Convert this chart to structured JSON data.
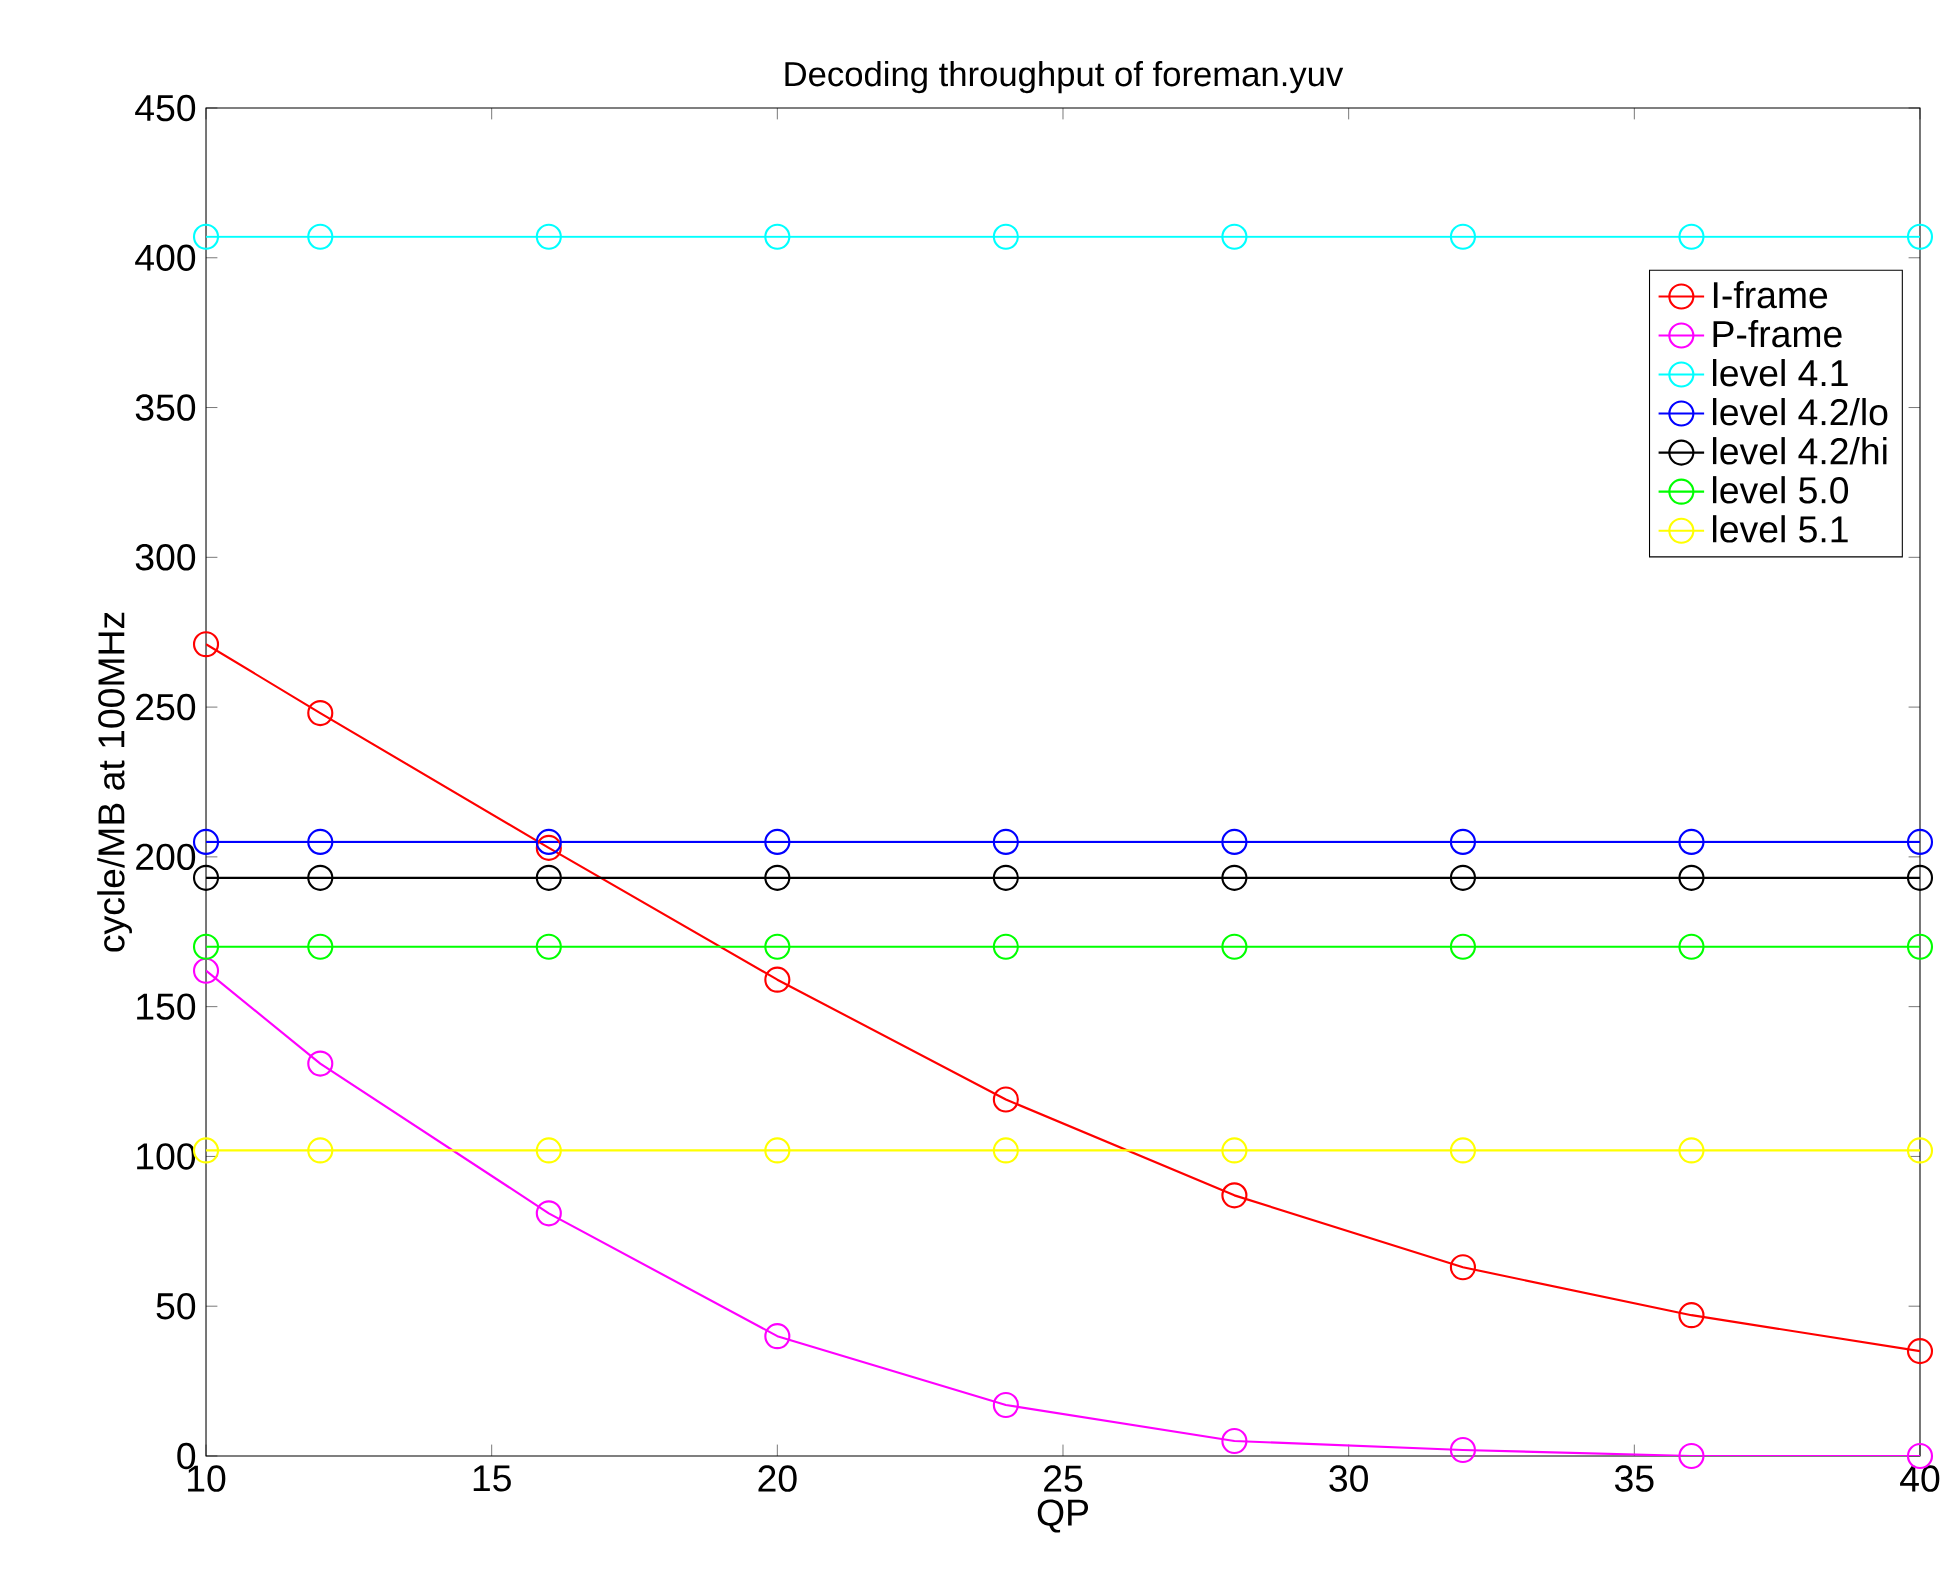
{
  "chart_data": {
    "type": "line",
    "title": "Decoding throughput of foreman.yuv",
    "xlabel": "QP",
    "ylabel": "cycle/MB at 100MHz",
    "x": [
      10,
      12,
      16,
      20,
      24,
      28,
      32,
      36,
      40
    ],
    "series": [
      {
        "name": "I-frame",
        "color": "#ff0000",
        "values": [
          271,
          248,
          203,
          159,
          119,
          87,
          63,
          47,
          35
        ]
      },
      {
        "name": "P-frame",
        "color": "#ff00ff",
        "values": [
          162,
          131,
          81,
          40,
          17,
          5,
          2,
          0,
          0
        ]
      },
      {
        "name": "level 4.1",
        "color": "#00ffff",
        "values": [
          407,
          407,
          407,
          407,
          407,
          407,
          407,
          407,
          407
        ]
      },
      {
        "name": "level 4.2/lo",
        "color": "#0000ff",
        "values": [
          205,
          205,
          205,
          205,
          205,
          205,
          205,
          205,
          205
        ]
      },
      {
        "name": "level 4.2/hi",
        "color": "#000000",
        "values": [
          193,
          193,
          193,
          193,
          193,
          193,
          193,
          193,
          193
        ]
      },
      {
        "name": "level 5.0",
        "color": "#00ff00",
        "values": [
          170,
          170,
          170,
          170,
          170,
          170,
          170,
          170,
          170
        ]
      },
      {
        "name": "level 5.1",
        "color": "#ffff00",
        "values": [
          102,
          102,
          102,
          102,
          102,
          102,
          102,
          102,
          102
        ]
      }
    ],
    "xlim": [
      10,
      40
    ],
    "ylim": [
      0,
      450
    ],
    "xticks": [
      10,
      15,
      20,
      25,
      30,
      35,
      40
    ],
    "yticks": [
      0,
      50,
      100,
      150,
      200,
      250,
      300,
      350,
      400,
      450
    ],
    "legend": "top right",
    "marker": "circle",
    "line_style": "solid",
    "grid": false
  }
}
